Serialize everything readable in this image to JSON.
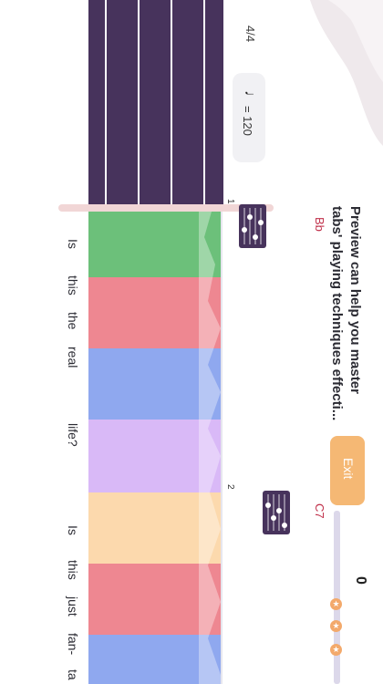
{
  "time_signature": "4/4",
  "tempo": "= 120",
  "tooltip": {
    "text_line1": "Preview can help you master",
    "text_line2": "tabs' playing techniques effecti..."
  },
  "exit_label": "Exit",
  "score": "0",
  "chords": [
    {
      "bar": "1",
      "name": "Bb"
    },
    {
      "bar": "2",
      "name": "C7"
    }
  ],
  "lyrics": [
    "Is",
    "this",
    "the",
    "real",
    "life?",
    "Is",
    "this",
    "just",
    "fan-",
    "ta"
  ],
  "colors": {
    "neck": "#47335c",
    "tile_green": "#6cc07a",
    "tile_red": "#ee8791",
    "tile_blue": "#8fa8ef",
    "tile_purple": "#d9b9f7",
    "tile_peach": "#fcd9ad",
    "exit": "#f5b874",
    "chord_name": "#c0304a"
  }
}
